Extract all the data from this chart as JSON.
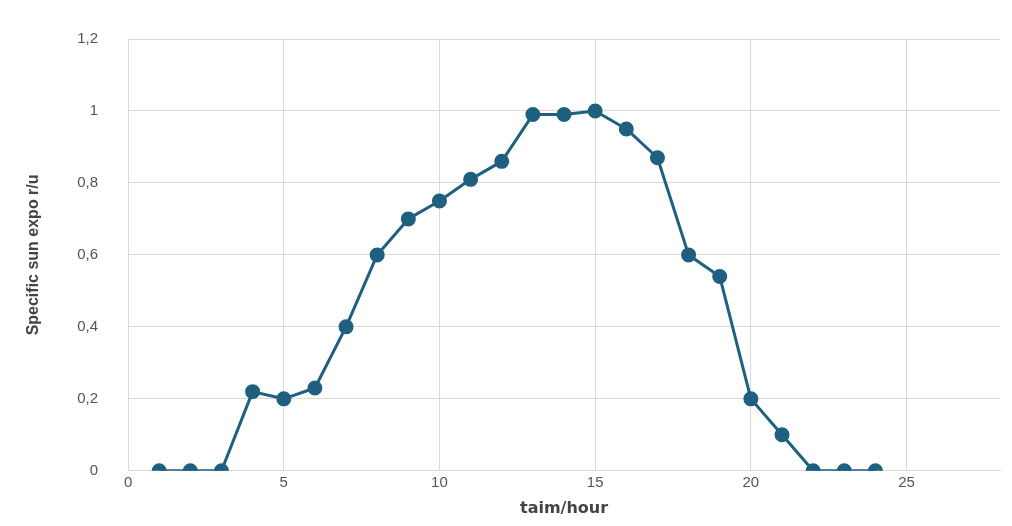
{
  "chart_data": {
    "type": "line",
    "xlabel": "taim/hour",
    "ylabel": "Specific sun expo r/u",
    "x": [
      1,
      2,
      3,
      4,
      5,
      6,
      7,
      8,
      9,
      10,
      11,
      12,
      13,
      14,
      15,
      16,
      17,
      18,
      19,
      20,
      21,
      22,
      23,
      24
    ],
    "series": [
      {
        "color": "#1f5f7f",
        "values": [
          0,
          0,
          0,
          0.22,
          0.2,
          0.23,
          0.4,
          0.6,
          0.7,
          0.75,
          0.81,
          0.86,
          0.99,
          0.99,
          1,
          0.95,
          0.87,
          0.6,
          0.54,
          0.2,
          0.1,
          0,
          0,
          0
        ]
      }
    ],
    "xlim": [
      0,
      28
    ],
    "xticks": [
      0,
      5,
      10,
      15,
      20,
      25
    ],
    "ylim": [
      0,
      1.2
    ],
    "yticks": [
      0,
      {
        "value": 0.2,
        "label": "0,2"
      },
      {
        "value": 0.4,
        "label": "0,4"
      },
      {
        "value": 0.6,
        "label": "0,6"
      },
      {
        "value": 0.8,
        "label": "0,8"
      },
      1,
      {
        "value": 1.2,
        "label": "1,2"
      }
    ],
    "grid": true,
    "legend": false,
    "marker": "circle",
    "line_style": "solid"
  }
}
